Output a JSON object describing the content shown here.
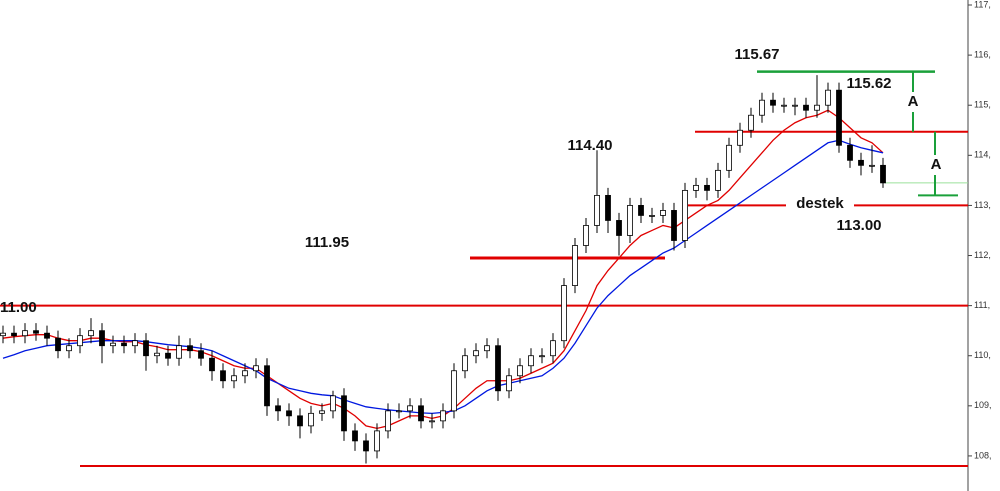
{
  "chart_data": {
    "type": "candlestick",
    "ylim": [
      107.3,
      117.1
    ],
    "yticks": [
      {
        "value": 108,
        "label": "108,"
      },
      {
        "value": 109,
        "label": "109,"
      },
      {
        "value": 110,
        "label": "110,"
      },
      {
        "value": 111,
        "label": "111,"
      },
      {
        "value": 112,
        "label": "112,"
      },
      {
        "value": 113,
        "label": "113,"
      },
      {
        "value": 114,
        "label": "114,"
      },
      {
        "value": 115,
        "label": "115,"
      },
      {
        "value": 116,
        "label": "116,"
      },
      {
        "value": 117,
        "label": "117,"
      }
    ],
    "open": [
      110.4,
      110.45,
      110.4,
      110.5,
      110.45,
      110.35,
      110.1,
      110.2,
      110.4,
      110.5,
      110.2,
      110.25,
      110.2,
      110.3,
      110.0,
      110.05,
      109.95,
      110.2,
      110.1,
      109.95,
      109.7,
      109.5,
      109.6,
      109.7,
      109.8,
      109.0,
      108.9,
      108.8,
      108.6,
      108.85,
      108.9,
      109.2,
      108.5,
      108.3,
      108.1,
      108.5,
      108.9,
      108.9,
      109.0,
      108.7,
      108.7,
      108.9,
      109.7,
      110.0,
      110.1,
      110.2,
      109.3,
      109.6,
      109.8,
      110.0,
      110.0,
      110.3,
      111.4,
      112.2,
      112.6,
      113.2,
      112.7,
      112.4,
      113.0,
      112.8,
      112.8,
      112.9,
      112.3,
      113.3,
      113.4,
      113.3,
      113.7,
      114.2,
      114.5,
      114.8,
      115.1,
      115.0,
      115.0,
      115.0,
      114.9,
      115.0,
      115.3,
      114.2,
      113.9,
      113.8,
      113.8
    ],
    "high": [
      110.6,
      110.6,
      110.65,
      110.65,
      110.6,
      110.5,
      110.35,
      110.55,
      110.75,
      110.65,
      110.4,
      110.4,
      110.45,
      110.45,
      110.2,
      110.2,
      110.4,
      110.35,
      110.25,
      110.1,
      109.85,
      109.75,
      109.85,
      109.95,
      109.95,
      109.15,
      109.05,
      108.95,
      109.0,
      109.05,
      109.3,
      109.35,
      108.65,
      108.45,
      108.65,
      109.05,
      109.05,
      109.15,
      109.15,
      108.85,
      109.05,
      109.85,
      110.15,
      110.25,
      110.35,
      110.35,
      109.75,
      109.95,
      110.15,
      110.15,
      110.45,
      111.55,
      112.35,
      112.75,
      114.1,
      113.35,
      112.85,
      113.15,
      113.15,
      112.95,
      113.05,
      113.05,
      113.45,
      113.55,
      113.55,
      113.85,
      114.35,
      114.65,
      114.95,
      115.25,
      115.25,
      115.15,
      115.15,
      115.15,
      115.6,
      115.45,
      115.45,
      114.35,
      114.05,
      114.2,
      113.95
    ],
    "low": [
      110.25,
      110.25,
      110.25,
      110.3,
      110.2,
      109.95,
      109.95,
      110.05,
      110.25,
      109.85,
      110.05,
      110.05,
      110.05,
      109.7,
      109.85,
      109.8,
      109.8,
      109.95,
      109.8,
      109.5,
      109.35,
      109.35,
      109.45,
      109.55,
      108.8,
      108.7,
      108.6,
      108.35,
      108.45,
      108.7,
      108.75,
      108.3,
      108.1,
      107.85,
      107.95,
      108.35,
      108.75,
      108.75,
      108.55,
      108.55,
      108.55,
      108.75,
      109.55,
      109.85,
      109.95,
      109.1,
      109.15,
      109.45,
      109.65,
      109.85,
      109.85,
      110.15,
      111.25,
      112.05,
      112.45,
      112.45,
      112.0,
      112.25,
      112.65,
      112.65,
      112.65,
      112.1,
      112.15,
      113.15,
      113.1,
      113.15,
      113.55,
      114.05,
      114.35,
      114.65,
      114.85,
      114.85,
      114.8,
      114.75,
      114.75,
      114.85,
      114.05,
      113.75,
      113.6,
      113.65,
      113.35
    ],
    "close": [
      110.45,
      110.4,
      110.5,
      110.45,
      110.35,
      110.1,
      110.2,
      110.4,
      110.5,
      110.2,
      110.25,
      110.2,
      110.3,
      110.0,
      110.05,
      109.95,
      110.2,
      110.1,
      109.95,
      109.7,
      109.5,
      109.6,
      109.7,
      109.8,
      109.0,
      108.9,
      108.8,
      108.6,
      108.85,
      108.9,
      109.2,
      108.5,
      108.3,
      108.1,
      108.5,
      108.9,
      108.9,
      109.0,
      108.7,
      108.7,
      108.9,
      109.7,
      110.0,
      110.1,
      110.2,
      109.3,
      109.6,
      109.8,
      110.0,
      110.0,
      110.3,
      111.4,
      112.2,
      112.6,
      113.2,
      112.7,
      112.4,
      113.0,
      112.8,
      112.8,
      112.9,
      112.3,
      113.3,
      113.4,
      113.3,
      113.7,
      114.2,
      114.5,
      114.8,
      115.1,
      115.0,
      115.0,
      115.0,
      114.9,
      115.0,
      115.3,
      114.2,
      113.9,
      113.8,
      113.8,
      113.45
    ],
    "series": [
      {
        "color": "#e00000",
        "values": [
          110.35,
          110.38,
          110.4,
          110.42,
          110.42,
          110.35,
          110.3,
          110.3,
          110.35,
          110.35,
          110.3,
          110.28,
          110.28,
          110.22,
          110.18,
          110.12,
          110.12,
          110.12,
          110.08,
          110.0,
          109.9,
          109.8,
          109.75,
          109.75,
          109.6,
          109.45,
          109.3,
          109.15,
          109.05,
          109.0,
          109.05,
          108.95,
          108.8,
          108.6,
          108.55,
          108.6,
          108.7,
          108.8,
          108.8,
          108.75,
          108.8,
          108.95,
          109.15,
          109.35,
          109.5,
          109.5,
          109.5,
          109.55,
          109.65,
          109.75,
          109.85,
          110.1,
          110.5,
          110.9,
          111.4,
          111.7,
          111.95,
          112.2,
          112.4,
          112.5,
          112.6,
          112.55,
          112.7,
          112.85,
          113.0,
          113.1,
          113.3,
          113.55,
          113.8,
          114.05,
          114.3,
          114.5,
          114.65,
          114.75,
          114.8,
          114.9,
          114.75,
          114.55,
          114.35,
          114.25,
          114.05
        ]
      },
      {
        "color": "#0018e0",
        "values": [
          109.95,
          110.02,
          110.1,
          110.15,
          110.2,
          110.22,
          110.24,
          110.26,
          110.28,
          110.3,
          110.3,
          110.3,
          110.3,
          110.28,
          110.25,
          110.22,
          110.2,
          110.18,
          110.15,
          110.1,
          110.0,
          109.9,
          109.8,
          109.7,
          109.55,
          109.45,
          109.35,
          109.3,
          109.25,
          109.22,
          109.2,
          109.12,
          109.05,
          108.98,
          108.95,
          108.92,
          108.9,
          108.88,
          108.86,
          108.85,
          108.87,
          108.9,
          109.0,
          109.15,
          109.3,
          109.4,
          109.45,
          109.5,
          109.55,
          109.6,
          109.75,
          109.95,
          110.25,
          110.6,
          110.95,
          111.2,
          111.4,
          111.6,
          111.75,
          111.9,
          112.05,
          112.15,
          112.3,
          112.45,
          112.6,
          112.75,
          112.9,
          113.05,
          113.2,
          113.35,
          113.5,
          113.65,
          113.8,
          113.95,
          114.1,
          114.25,
          114.3,
          114.22,
          114.15,
          114.1,
          114.05
        ]
      }
    ],
    "levels": [
      {
        "value": 111.0,
        "color": "#e00000"
      },
      {
        "value": 114.47,
        "color": "#e00000"
      },
      {
        "value": 113.0,
        "color": "#e00000"
      },
      {
        "value": 111.95,
        "color": "#e00000"
      },
      {
        "value": 107.8,
        "color": "#e00000"
      },
      {
        "value": 115.67,
        "color": "#1aa03a"
      },
      {
        "value": 113.45,
        "color": "#9be09b"
      }
    ],
    "annotations": [
      "115.67",
      "115.62",
      "114.40",
      "111.95",
      "11.00",
      "113.00",
      "destek",
      "A",
      "A"
    ]
  }
}
